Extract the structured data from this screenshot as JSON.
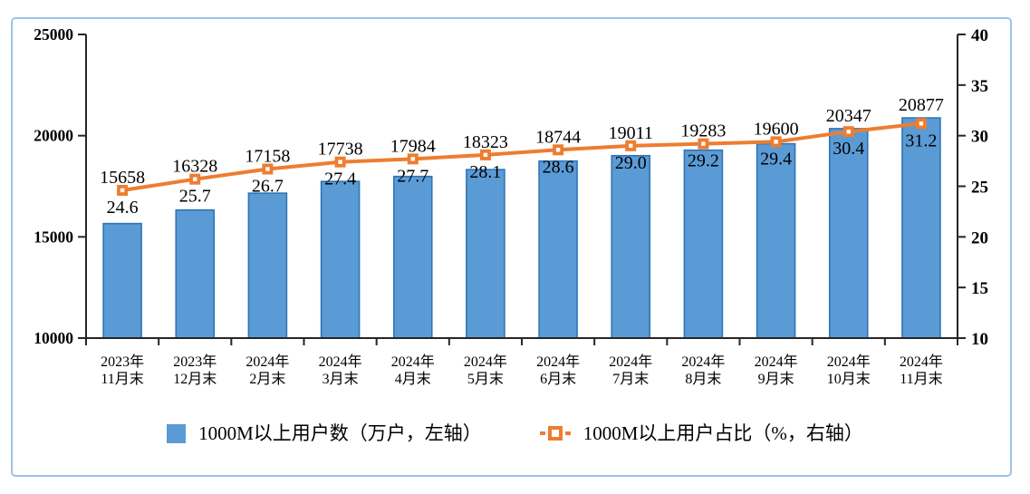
{
  "figure": {
    "background": "#FFFFFF",
    "frame_color": "#9DC3E6",
    "axis_color": "#262626",
    "label_color": "#000000"
  },
  "chart_data": {
    "type": "combo-bar-line",
    "title": "",
    "categories": [
      {
        "line1": "2023年",
        "line2": "11月末"
      },
      {
        "line1": "2023年",
        "line2": "12月末"
      },
      {
        "line1": "2024年",
        "line2": "2月末"
      },
      {
        "line1": "2024年",
        "line2": "3月末"
      },
      {
        "line1": "2024年",
        "line2": "4月末"
      },
      {
        "line1": "2024年",
        "line2": "5月末"
      },
      {
        "line1": "2024年",
        "line2": "6月末"
      },
      {
        "line1": "2024年",
        "line2": "7月末"
      },
      {
        "line1": "2024年",
        "line2": "8月末"
      },
      {
        "line1": "2024年",
        "line2": "9月末"
      },
      {
        "line1": "2024年",
        "line2": "10月末"
      },
      {
        "line1": "2024年",
        "line2": "11月末"
      }
    ],
    "series": [
      {
        "name": "1000M以上用户数（万户，左轴）",
        "type": "bar",
        "axis": "left",
        "color": "#5B9BD5",
        "border_color": "#2E75B6",
        "values": [
          15658,
          16328,
          17158,
          17738,
          17984,
          18323,
          18744,
          19011,
          19283,
          19600,
          20347,
          20877
        ]
      },
      {
        "name": "1000M以上用户占比（%，右轴）",
        "type": "line",
        "axis": "right",
        "color": "#ED7D31",
        "marker": "square-white-center",
        "values": [
          24.6,
          25.7,
          26.7,
          27.4,
          27.7,
          28.1,
          28.6,
          29.0,
          29.2,
          29.4,
          30.4,
          31.2
        ]
      }
    ],
    "left_axis": {
      "min": 10000,
      "max": 25000,
      "step": 5000,
      "ticks": [
        10000,
        15000,
        20000,
        25000
      ]
    },
    "right_axis": {
      "min": 10,
      "max": 40,
      "step": 5,
      "ticks": [
        10,
        15,
        20,
        25,
        30,
        35,
        40
      ]
    },
    "grid": false,
    "legend_position": "bottom",
    "data_labels": true
  },
  "legend": {
    "items": [
      {
        "label": "1000M以上用户数（万户，左轴）"
      },
      {
        "label": "1000M以上用户占比（%，右轴）"
      }
    ]
  }
}
